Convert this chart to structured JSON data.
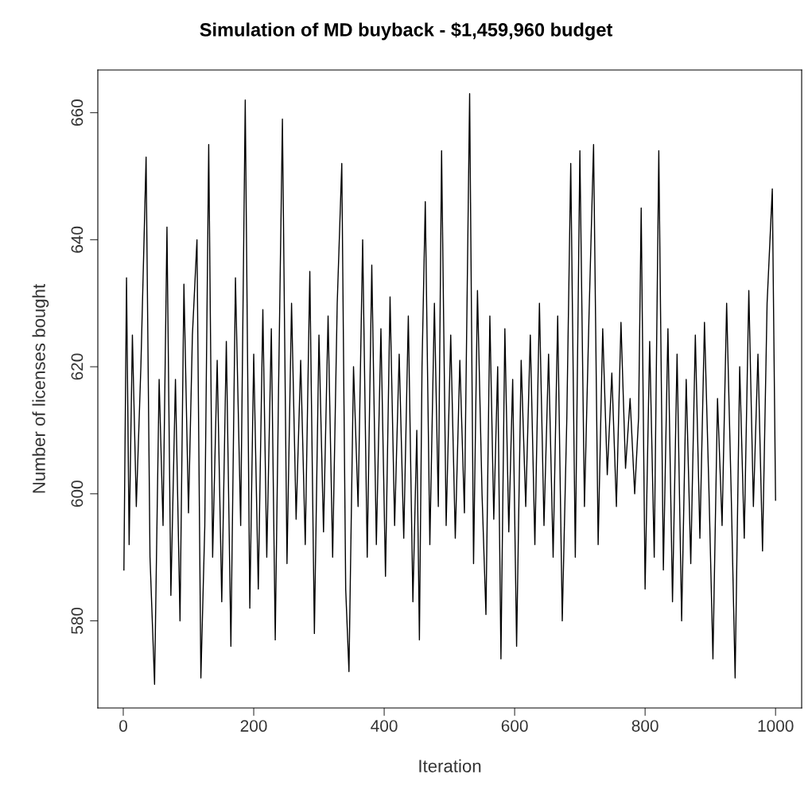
{
  "chart_data": {
    "type": "line",
    "title": "Simulation of MD buyback - $1,459,960 budget",
    "xlabel": "Iteration",
    "ylabel": "Number of licenses bought",
    "x": [
      1,
      5,
      9,
      14,
      20,
      27,
      35,
      41,
      48,
      55,
      61,
      67,
      73,
      80,
      87,
      93,
      100,
      106,
      113,
      119,
      125,
      131,
      137,
      144,
      151,
      158,
      165,
      172,
      180,
      187,
      194,
      200,
      207,
      214,
      220,
      227,
      233,
      238,
      244,
      251,
      258,
      265,
      272,
      279,
      286,
      293,
      300,
      307,
      314,
      321,
      328,
      335,
      341,
      346,
      353,
      360,
      367,
      374,
      381,
      388,
      395,
      402,
      409,
      416,
      423,
      430,
      437,
      444,
      450,
      454,
      458,
      463,
      470,
      477,
      483,
      488,
      495,
      502,
      509,
      516,
      523,
      531,
      537,
      543,
      550,
      556,
      562,
      568,
      574,
      579,
      585,
      591,
      597,
      603,
      610,
      617,
      624,
      631,
      638,
      645,
      652,
      659,
      666,
      673,
      680,
      686,
      693,
      700,
      707,
      714,
      721,
      728,
      735,
      742,
      749,
      756,
      763,
      770,
      777,
      784,
      790,
      794,
      800,
      807,
      814,
      821,
      828,
      835,
      842,
      849,
      856,
      863,
      870,
      877,
      884,
      891,
      898,
      904,
      911,
      918,
      925,
      932,
      938,
      945,
      952,
      959,
      966,
      973,
      980,
      987,
      995,
      1000
    ],
    "series": [
      {
        "color": "#000000",
        "values": [
          588,
          634,
          592,
          625,
          598,
          620,
          653,
          590,
          570,
          618,
          595,
          642,
          584,
          618,
          580,
          633,
          597,
          625,
          640,
          571,
          595,
          655,
          590,
          621,
          583,
          624,
          576,
          634,
          595,
          662,
          582,
          622,
          585,
          629,
          590,
          626,
          577,
          616,
          659,
          589,
          630,
          596,
          621,
          592,
          635,
          578,
          625,
          594,
          628,
          590,
          630,
          652,
          585,
          572,
          620,
          598,
          640,
          590,
          636,
          592,
          626,
          587,
          631,
          595,
          622,
          593,
          628,
          583,
          610,
          577,
          620,
          646,
          592,
          630,
          598,
          654,
          595,
          625,
          593,
          621,
          597,
          663,
          589,
          632,
          600,
          581,
          628,
          596,
          620,
          574,
          626,
          594,
          618,
          576,
          621,
          598,
          625,
          592,
          630,
          595,
          622,
          590,
          628,
          580,
          612,
          652,
          590,
          654,
          598,
          628,
          655,
          592,
          626,
          603,
          619,
          598,
          627,
          604,
          615,
          600,
          612,
          645,
          585,
          624,
          590,
          654,
          588,
          626,
          583,
          622,
          580,
          618,
          589,
          625,
          593,
          627,
          600,
          574,
          615,
          595,
          630,
          600,
          571,
          620,
          593,
          632,
          598,
          622,
          591,
          630,
          648,
          599
        ]
      }
    ],
    "xlim": [
      -39,
      1040
    ],
    "ylim": [
      566.28,
      666.72
    ],
    "xticks": [
      0,
      200,
      400,
      600,
      800,
      1000
    ],
    "yticks": [
      580,
      600,
      620,
      640,
      660
    ],
    "grid": false,
    "legend": false,
    "marker": "none",
    "line_style": "solid"
  }
}
